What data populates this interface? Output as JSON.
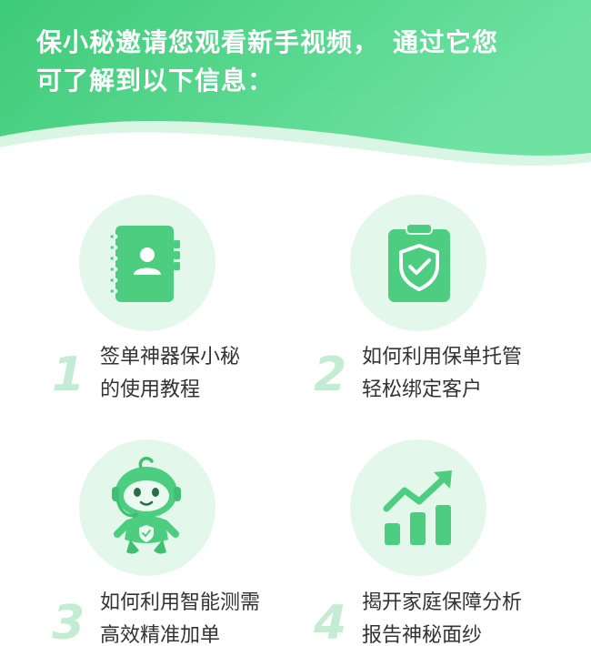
{
  "header": {
    "title_line1": "保小秘邀请您观看新手视频，　通过它您",
    "title_line2": "可了解到以下信息："
  },
  "colors": {
    "header_start": "#3ecb78",
    "header_end": "#6ee2a2",
    "circle_bg": "#e3f7ea",
    "icon_green": "#4ccd7f",
    "number": "#c4ecd2",
    "text": "#333333"
  },
  "items": [
    {
      "number": "1",
      "line1": "签单神器保小秘",
      "line2": "的使用教程",
      "icon": "contact-book-icon"
    },
    {
      "number": "2",
      "line1": "如何利用保单托管",
      "line2": "轻松绑定客户",
      "icon": "clipboard-shield-icon"
    },
    {
      "number": "3",
      "line1": "如何利用智能测需",
      "line2": "高效精准加单",
      "icon": "robot-mascot-icon"
    },
    {
      "number": "4",
      "line1": "揭开家庭保障分析",
      "line2": "报告神秘面纱",
      "icon": "growth-chart-icon"
    }
  ]
}
